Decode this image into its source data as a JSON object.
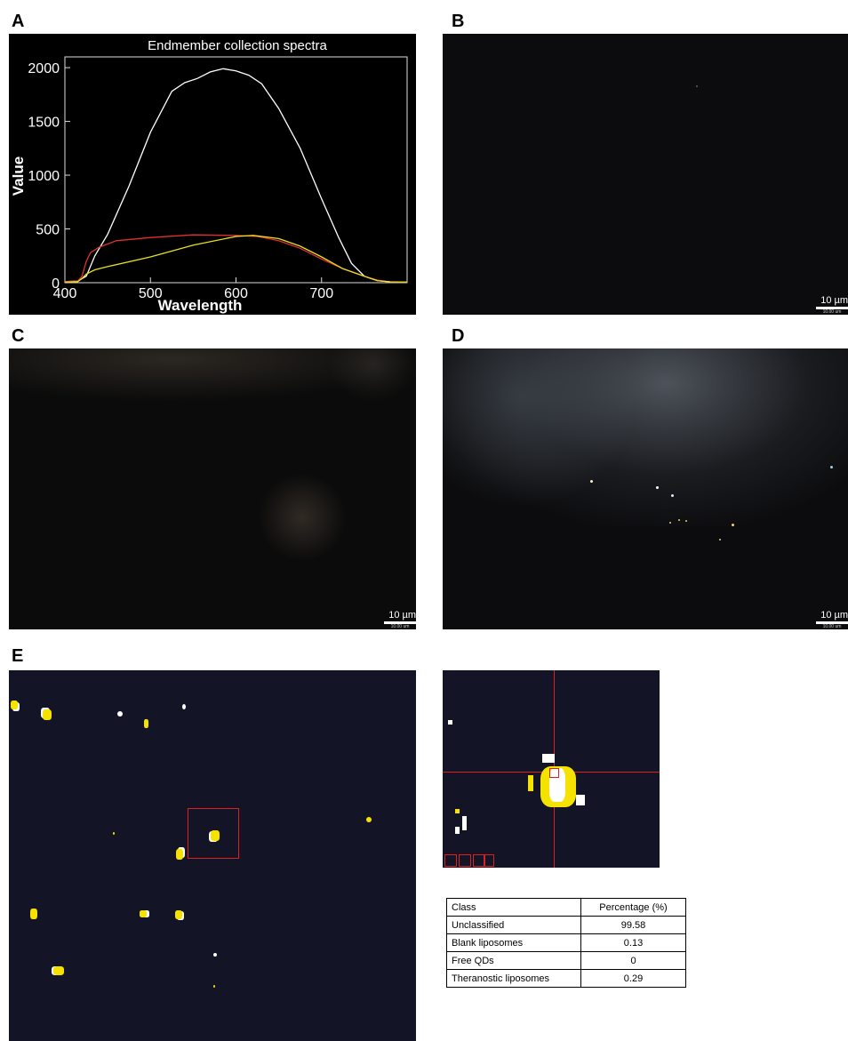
{
  "panels": {
    "a": "A",
    "b": "B",
    "c": "C",
    "d": "D",
    "e": "E"
  },
  "scale_bar": {
    "label": "10 µm",
    "sub": "10.00 um"
  },
  "chart_data": {
    "type": "line",
    "title": "Endmember collection spectra",
    "xlabel": "Wavelength",
    "ylabel": "Value",
    "xlim": [
      400,
      800
    ],
    "ylim": [
      0,
      2100
    ],
    "xticks": [
      400,
      500,
      600,
      700
    ],
    "yticks": [
      0,
      500,
      1000,
      1500,
      2000
    ],
    "background": "#000000",
    "series": [
      {
        "color": "#ffffff",
        "x": [
          400,
          415,
          425,
          435,
          450,
          475,
          500,
          525,
          540,
          555,
          570,
          585,
          600,
          615,
          630,
          650,
          675,
          700,
          720,
          735,
          750,
          765,
          780,
          800
        ],
        "y": [
          10,
          15,
          60,
          250,
          450,
          900,
          1400,
          1780,
          1860,
          1900,
          1960,
          1990,
          1970,
          1930,
          1850,
          1620,
          1250,
          780,
          420,
          180,
          60,
          20,
          8,
          5
        ]
      },
      {
        "color": "#e03030",
        "x": [
          400,
          415,
          420,
          425,
          430,
          440,
          460,
          500,
          550,
          600,
          625,
          650,
          675,
          700,
          725,
          750,
          765,
          780,
          800
        ],
        "y": [
          10,
          15,
          60,
          200,
          280,
          330,
          390,
          420,
          445,
          440,
          430,
          390,
          320,
          220,
          130,
          60,
          25,
          8,
          5
        ]
      },
      {
        "color": "#e8e020",
        "x": [
          400,
          415,
          420,
          425,
          435,
          450,
          500,
          550,
          600,
          620,
          650,
          675,
          700,
          725,
          750,
          765,
          780,
          800
        ],
        "y": [
          5,
          10,
          40,
          80,
          120,
          150,
          240,
          350,
          430,
          440,
          410,
          340,
          240,
          130,
          60,
          20,
          8,
          5
        ]
      }
    ]
  },
  "table": {
    "headers": [
      "Class",
      "Percentage (%)"
    ],
    "rows": [
      [
        "Unclassified",
        "99.58"
      ],
      [
        "Blank liposomes",
        "0.13"
      ],
      [
        "Free QDs",
        "0"
      ],
      [
        "Theranostic liposomes",
        "0.29"
      ]
    ]
  }
}
